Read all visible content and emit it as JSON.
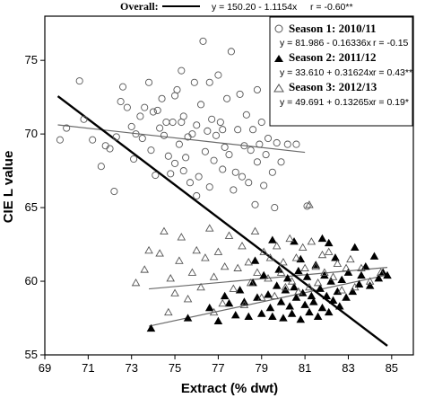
{
  "chart_data": {
    "type": "scatter",
    "xlabel": "Extract (% dwt)",
    "ylabel": "CIE  L value",
    "xlim": [
      69,
      86
    ],
    "ylim": [
      55,
      78
    ],
    "x_ticks": [
      "69",
      "71",
      "73",
      "75",
      "77",
      "79",
      "81",
      "83",
      "85"
    ],
    "y_ticks": [
      "55",
      "60",
      "65",
      "70",
      "75"
    ],
    "grid": false,
    "legend_position": "top-right",
    "overall": {
      "label": "Overall:",
      "equation": "y = 150.20 - 1.1154x",
      "r": "r = -0.60**",
      "intercept": 150.2,
      "slope": -1.1154,
      "x_range": [
        69.6,
        84.8
      ],
      "color": "#000000"
    },
    "series": [
      {
        "name": "Season 1: 2010/11",
        "marker": "circle-open",
        "equation": "y = 81.986 - 0.16336x",
        "r": "r = -0.15",
        "intercept": 81.986,
        "slope": -0.16336,
        "fit_x_range": [
          69.6,
          81.0
        ],
        "color": "#555555",
        "points": [
          [
            69.7,
            69.6
          ],
          [
            70.0,
            70.4
          ],
          [
            70.6,
            73.6
          ],
          [
            70.8,
            71.0
          ],
          [
            71.2,
            69.6
          ],
          [
            71.6,
            67.8
          ],
          [
            71.8,
            69.2
          ],
          [
            72.0,
            69.0
          ],
          [
            72.2,
            66.1
          ],
          [
            72.3,
            69.8
          ],
          [
            72.5,
            72.2
          ],
          [
            72.6,
            73.2
          ],
          [
            72.8,
            71.8
          ],
          [
            73.0,
            70.5
          ],
          [
            73.2,
            70.0
          ],
          [
            73.4,
            71.2
          ],
          [
            73.5,
            69.7
          ],
          [
            73.6,
            71.8
          ],
          [
            73.8,
            73.5
          ],
          [
            73.9,
            68.9
          ],
          [
            74.0,
            71.5
          ],
          [
            74.2,
            71.6
          ],
          [
            74.3,
            70.4
          ],
          [
            74.4,
            72.4
          ],
          [
            74.5,
            69.9
          ],
          [
            74.6,
            70.8
          ],
          [
            74.7,
            68.5
          ],
          [
            74.8,
            67.3
          ],
          [
            74.9,
            70.8
          ],
          [
            75.0,
            68.0
          ],
          [
            75.0,
            72.6
          ],
          [
            75.1,
            73.0
          ],
          [
            75.2,
            69.3
          ],
          [
            75.3,
            70.8
          ],
          [
            75.3,
            74.3
          ],
          [
            75.4,
            71.2
          ],
          [
            75.5,
            68.4
          ],
          [
            75.6,
            69.8
          ],
          [
            75.7,
            66.7
          ],
          [
            75.8,
            70.0
          ],
          [
            75.9,
            73.5
          ],
          [
            76.0,
            70.6
          ],
          [
            76.0,
            65.8
          ],
          [
            76.1,
            67.1
          ],
          [
            76.2,
            72.0
          ],
          [
            76.3,
            76.3
          ],
          [
            76.4,
            68.8
          ],
          [
            76.5,
            70.2
          ],
          [
            76.6,
            66.4
          ],
          [
            76.6,
            73.5
          ],
          [
            76.7,
            71.0
          ],
          [
            76.8,
            68.2
          ],
          [
            76.9,
            69.9
          ],
          [
            77.0,
            74.0
          ],
          [
            77.1,
            70.8
          ],
          [
            77.2,
            67.6
          ],
          [
            77.3,
            69.1
          ],
          [
            77.4,
            72.4
          ],
          [
            77.5,
            68.6
          ],
          [
            77.6,
            75.6
          ],
          [
            77.7,
            66.2
          ],
          [
            77.8,
            67.4
          ],
          [
            77.9,
            70.3
          ],
          [
            78.0,
            72.7
          ],
          [
            78.1,
            67.1
          ],
          [
            78.2,
            69.2
          ],
          [
            78.3,
            71.3
          ],
          [
            78.4,
            66.7
          ],
          [
            78.5,
            68.9
          ],
          [
            78.6,
            70.3
          ],
          [
            78.7,
            65.2
          ],
          [
            78.8,
            68.1
          ],
          [
            78.9,
            69.3
          ],
          [
            79.0,
            70.8
          ],
          [
            79.1,
            66.5
          ],
          [
            79.2,
            68.6
          ],
          [
            79.3,
            69.7
          ],
          [
            79.5,
            67.4
          ],
          [
            79.6,
            65.0
          ],
          [
            79.7,
            69.4
          ],
          [
            79.9,
            68.1
          ],
          [
            80.2,
            69.3
          ],
          [
            80.6,
            69.3
          ],
          [
            81.0,
            71.0
          ],
          [
            81.1,
            65.1
          ],
          [
            73.1,
            68.3
          ],
          [
            74.1,
            67.2
          ],
          [
            75.4,
            67.5
          ],
          [
            77.2,
            70.3
          ],
          [
            78.8,
            73.0
          ]
        ]
      },
      {
        "name": "Season 2: 2011/12",
        "marker": "triangle-filled",
        "equation": "y = 33.610 + 0.31624x",
        "r": "r = 0.43**",
        "intercept": 33.61,
        "slope": 0.31624,
        "fit_x_range": [
          73.8,
          84.8
        ],
        "color": "#000000",
        "points": [
          [
            73.9,
            56.8
          ],
          [
            75.6,
            57.5
          ],
          [
            76.6,
            58.2
          ],
          [
            77.0,
            57.3
          ],
          [
            77.3,
            59.0
          ],
          [
            77.5,
            58.5
          ],
          [
            77.8,
            57.7
          ],
          [
            78.0,
            59.4
          ],
          [
            78.2,
            58.6
          ],
          [
            78.4,
            57.6
          ],
          [
            78.6,
            59.9
          ],
          [
            78.8,
            58.9
          ],
          [
            79.0,
            57.8
          ],
          [
            79.1,
            60.4
          ],
          [
            79.3,
            59.1
          ],
          [
            79.4,
            58.2
          ],
          [
            79.5,
            57.6
          ],
          [
            79.7,
            59.7
          ],
          [
            79.8,
            60.8
          ],
          [
            79.9,
            58.6
          ],
          [
            80.0,
            57.5
          ],
          [
            80.1,
            59.4
          ],
          [
            80.2,
            60.2
          ],
          [
            80.3,
            58.3
          ],
          [
            80.4,
            57.8
          ],
          [
            80.5,
            59.6
          ],
          [
            80.6,
            58.9
          ],
          [
            80.7,
            60.7
          ],
          [
            80.8,
            57.4
          ],
          [
            80.9,
            59.2
          ],
          [
            81.0,
            58.4
          ],
          [
            81.1,
            60.3
          ],
          [
            81.2,
            57.9
          ],
          [
            81.3,
            59.0
          ],
          [
            81.4,
            58.6
          ],
          [
            81.5,
            61.1
          ],
          [
            81.6,
            57.6
          ],
          [
            81.7,
            59.5
          ],
          [
            81.8,
            58.2
          ],
          [
            81.9,
            60.4
          ],
          [
            82.0,
            59.0
          ],
          [
            82.1,
            57.9
          ],
          [
            82.2,
            60.0
          ],
          [
            82.3,
            58.7
          ],
          [
            82.4,
            61.6
          ],
          [
            82.5,
            59.3
          ],
          [
            82.6,
            58.3
          ],
          [
            82.7,
            60.1
          ],
          [
            82.9,
            58.9
          ],
          [
            83.0,
            60.6
          ],
          [
            83.2,
            59.3
          ],
          [
            83.3,
            62.3
          ],
          [
            83.5,
            59.8
          ],
          [
            83.6,
            60.4
          ],
          [
            83.8,
            61.0
          ],
          [
            84.0,
            59.7
          ],
          [
            84.2,
            61.7
          ],
          [
            84.4,
            60.2
          ],
          [
            84.6,
            60.6
          ],
          [
            84.8,
            60.4
          ],
          [
            81.8,
            62.9
          ],
          [
            82.1,
            62.6
          ],
          [
            80.5,
            62.7
          ],
          [
            79.5,
            62.8
          ],
          [
            78.7,
            61.4
          ],
          [
            80.8,
            61.5
          ]
        ]
      },
      {
        "name": "Season 3: 2012/13",
        "marker": "triangle-open",
        "equation": "y = 49.691 + 0.13265x",
        "r": "r = 0.19*",
        "intercept": 49.691,
        "slope": 0.13265,
        "fit_x_range": [
          73.8,
          84.8
        ],
        "color": "#555555",
        "points": [
          [
            73.6,
            60.8
          ],
          [
            73.8,
            62.1
          ],
          [
            74.3,
            61.9
          ],
          [
            74.5,
            63.4
          ],
          [
            74.8,
            60.2
          ],
          [
            75.0,
            59.2
          ],
          [
            75.2,
            61.4
          ],
          [
            75.3,
            63.0
          ],
          [
            75.6,
            58.8
          ],
          [
            75.8,
            60.6
          ],
          [
            76.0,
            62.1
          ],
          [
            76.2,
            59.6
          ],
          [
            76.4,
            61.6
          ],
          [
            76.6,
            63.6
          ],
          [
            76.8,
            60.3
          ],
          [
            77.0,
            62.0
          ],
          [
            77.2,
            58.5
          ],
          [
            77.3,
            61.0
          ],
          [
            77.5,
            63.1
          ],
          [
            77.7,
            59.5
          ],
          [
            77.9,
            60.9
          ],
          [
            78.1,
            62.4
          ],
          [
            78.2,
            58.4
          ],
          [
            78.4,
            61.3
          ],
          [
            78.5,
            59.9
          ],
          [
            78.7,
            63.4
          ],
          [
            78.8,
            60.6
          ],
          [
            79.0,
            58.9
          ],
          [
            79.1,
            62.0
          ],
          [
            79.3,
            60.2
          ],
          [
            79.4,
            61.6
          ],
          [
            79.6,
            59.0
          ],
          [
            79.7,
            62.4
          ],
          [
            79.9,
            60.6
          ],
          [
            80.0,
            61.3
          ],
          [
            80.1,
            59.6
          ],
          [
            80.3,
            62.9
          ],
          [
            80.4,
            60.0
          ],
          [
            80.6,
            61.6
          ],
          [
            80.7,
            59.3
          ],
          [
            80.9,
            62.3
          ],
          [
            81.0,
            60.9
          ],
          [
            81.2,
            59.6
          ],
          [
            81.3,
            62.7
          ],
          [
            81.5,
            61.0
          ],
          [
            81.6,
            59.9
          ],
          [
            81.8,
            61.8
          ],
          [
            81.9,
            60.6
          ],
          [
            82.1,
            62.0
          ],
          [
            82.3,
            60.3
          ],
          [
            82.5,
            61.2
          ],
          [
            82.7,
            59.4
          ],
          [
            82.9,
            60.9
          ],
          [
            83.1,
            61.5
          ],
          [
            83.3,
            59.6
          ],
          [
            83.6,
            60.9
          ],
          [
            84.0,
            60.0
          ],
          [
            84.5,
            60.6
          ],
          [
            81.2,
            65.2
          ],
          [
            74.7,
            57.9
          ],
          [
            76.8,
            57.9
          ],
          [
            73.2,
            59.9
          ]
        ]
      }
    ]
  }
}
